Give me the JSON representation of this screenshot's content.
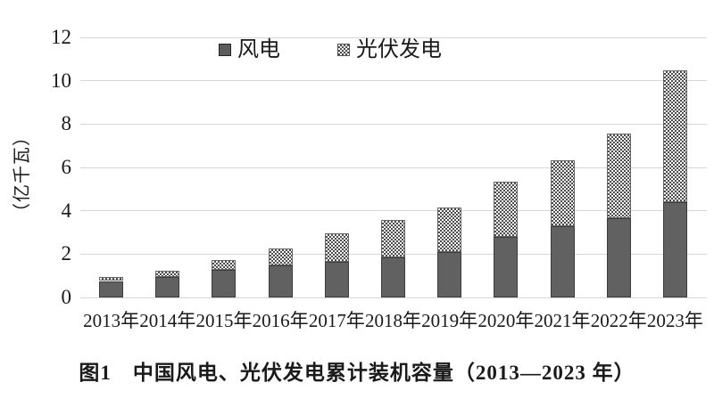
{
  "figure": {
    "caption": "图1　中国风电、光伏发电累计装机容量（2013—2023 年）"
  },
  "chart_data": {
    "type": "bar",
    "stacked": true,
    "title": "",
    "xlabel": "",
    "ylabel": "（亿千瓦）",
    "ylim": [
      0,
      12
    ],
    "yticks": [
      0,
      2,
      4,
      6,
      8,
      10,
      12
    ],
    "grid": true,
    "legend_position": "top-center",
    "categories": [
      "2013年",
      "2014年",
      "2015年",
      "2016年",
      "2017年",
      "2018年",
      "2019年",
      "2020年",
      "2021年",
      "2022年",
      "2023年"
    ],
    "series": [
      {
        "name": "风电",
        "swatch": "solid-dark-gray",
        "color": "#616161",
        "values": [
          0.76,
          0.96,
          1.29,
          1.49,
          1.64,
          1.84,
          2.1,
          2.81,
          3.28,
          3.65,
          4.41
        ]
      },
      {
        "name": "光伏发电",
        "swatch": "checker-pattern",
        "color": "#4d4d4d",
        "values": [
          0.19,
          0.28,
          0.43,
          0.77,
          1.3,
          1.74,
          2.04,
          2.53,
          3.06,
          3.93,
          6.09
        ]
      }
    ],
    "totals": [
      0.95,
      1.24,
      1.72,
      2.26,
      2.94,
      3.58,
      4.14,
      5.34,
      6.34,
      7.58,
      10.5
    ]
  }
}
